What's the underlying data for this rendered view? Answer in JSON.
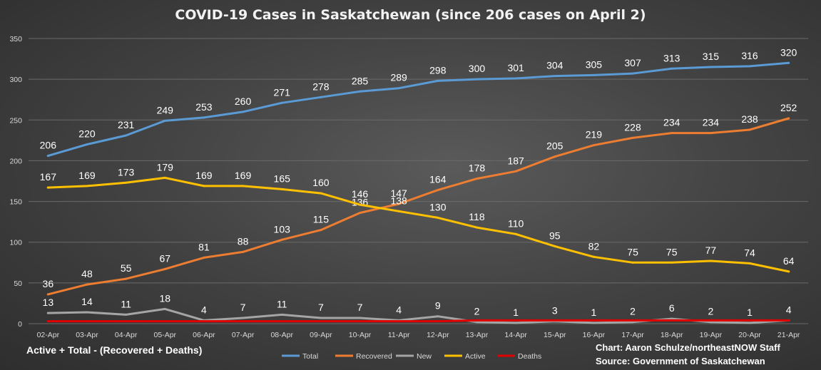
{
  "chart_data": {
    "type": "line",
    "title": "COVID-19 Cases in Saskatchewan (since 206 cases on April 2)",
    "categories": [
      "02-Apr",
      "03-Apr",
      "04-Apr",
      "05-Apr",
      "06-Apr",
      "07-Apr",
      "08-Apr",
      "09-Apr",
      "10-Apr",
      "11-Apr",
      "12-Apr",
      "13-Apr",
      "14-Apr",
      "15-Apr",
      "16-Apr",
      "17-Apr",
      "18-Apr",
      "19-Apr",
      "20-Apr",
      "21-Apr"
    ],
    "ylim": [
      0,
      350
    ],
    "yticks": [
      0,
      50,
      100,
      150,
      200,
      250,
      300,
      350
    ],
    "grid": true,
    "legend_position": "bottom",
    "series": [
      {
        "name": "Total",
        "color": "#5b9bd5",
        "labeled": true,
        "values": [
          206,
          220,
          231,
          249,
          253,
          260,
          271,
          278,
          285,
          289,
          298,
          300,
          301,
          304,
          305,
          307,
          313,
          315,
          316,
          320
        ]
      },
      {
        "name": "Recovered",
        "color": "#ed7d31",
        "labeled": true,
        "values": [
          36,
          48,
          55,
          67,
          81,
          88,
          103,
          115,
          136,
          147,
          164,
          178,
          187,
          205,
          219,
          228,
          234,
          234,
          238,
          252
        ]
      },
      {
        "name": "New",
        "color": "#a5a5a5",
        "labeled": true,
        "values": [
          13,
          14,
          11,
          18,
          4,
          7,
          11,
          7,
          7,
          4,
          9,
          2,
          1,
          3,
          1,
          2,
          6,
          2,
          1,
          4
        ]
      },
      {
        "name": "Active",
        "color": "#ffc000",
        "labeled": true,
        "values": [
          167,
          169,
          173,
          179,
          169,
          169,
          165,
          160,
          146,
          138,
          130,
          118,
          110,
          95,
          82,
          75,
          75,
          77,
          74,
          64
        ]
      },
      {
        "name": "Deaths",
        "color": "#e00000",
        "labeled": false,
        "values": [
          3,
          3,
          3,
          3,
          3,
          3,
          3,
          3,
          3,
          3,
          3,
          4,
          4,
          4,
          4,
          4,
          4,
          4,
          4,
          4
        ]
      }
    ]
  },
  "footer": {
    "note": "Active + Total - (Recovered + Deaths)",
    "credit_line1": "Chart: Aaron Schulze/northeastNOW Staff",
    "credit_line2": "Source: Government of Saskatchewan"
  }
}
